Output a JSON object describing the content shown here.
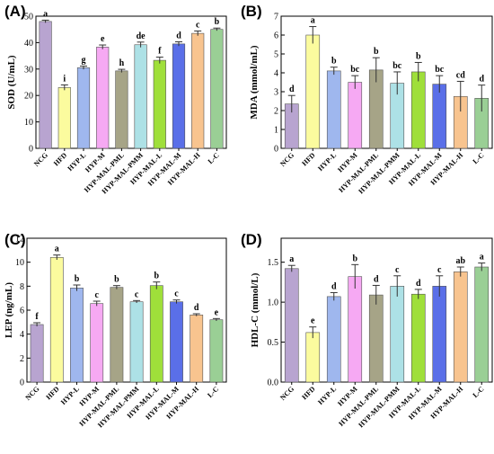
{
  "chart_data": [
    {
      "panel": "(A)",
      "type": "bar",
      "ylabel": "SOD (U/mL)",
      "ylim": [
        0,
        50
      ],
      "yticks": [
        0,
        10,
        20,
        30,
        40,
        50
      ],
      "categories": [
        "NCG",
        "HFD",
        "HYP-L",
        "HYP-M",
        "HYP-MAL-PML",
        "HYP-MAL-PMM",
        "HYP-MAL-L",
        "HYP-MAL-M",
        "HYP-MAL-H",
        "L-C"
      ],
      "values": [
        48,
        23,
        30.5,
        38.3,
        29.3,
        39.2,
        33.3,
        39.5,
        43.5,
        45
      ],
      "errors": [
        0.5,
        1.0,
        0.6,
        0.8,
        0.6,
        1.0,
        1.2,
        0.8,
        0.9,
        0.5
      ],
      "letters": [
        "a",
        "i",
        "g",
        "e",
        "h",
        "de",
        "f",
        "d",
        "c",
        "b"
      ]
    },
    {
      "panel": "(B)",
      "type": "bar",
      "ylabel": "MDA (mmol/mL)",
      "ylim": [
        0,
        7
      ],
      "yticks": [
        0,
        1,
        2,
        3,
        4,
        5,
        6,
        7
      ],
      "categories": [
        "NCG",
        "HFD",
        "HYP-L",
        "HYP-M",
        "HYP-MAL-PML",
        "HYP-MAL-PMM",
        "HYP-MAL-L",
        "HYP-MAL-M",
        "HYP-MAL-H",
        "L-C"
      ],
      "values": [
        2.35,
        6.0,
        4.1,
        3.5,
        4.15,
        3.45,
        4.05,
        3.4,
        2.75,
        2.65
      ],
      "errors": [
        0.45,
        0.45,
        0.2,
        0.35,
        0.65,
        0.6,
        0.5,
        0.45,
        0.8,
        0.7
      ],
      "letters": [
        "d",
        "a",
        "b",
        "bc",
        "b",
        "bc",
        "b",
        "bc",
        "cd",
        "d"
      ]
    },
    {
      "panel": "(C)",
      "type": "bar",
      "ylabel": "LEP (ng/mL)",
      "ylim": [
        0,
        12
      ],
      "yticks": [
        0,
        2,
        4,
        6,
        8,
        10,
        12
      ],
      "categories": [
        "NCG",
        "HFD",
        "HYP-L",
        "HYP-M",
        "HYP-MAL-PML",
        "HYP-MAL-PMM",
        "HYP-MAL-L",
        "HYP-MAL-M",
        "HYP-MAL-H",
        "L-C"
      ],
      "values": [
        4.8,
        10.4,
        7.85,
        6.55,
        7.9,
        6.7,
        8.05,
        6.7,
        5.6,
        5.2
      ],
      "errors": [
        0.15,
        0.2,
        0.25,
        0.2,
        0.15,
        0.1,
        0.3,
        0.15,
        0.1,
        0.1
      ],
      "letters": [
        "f",
        "a",
        "b",
        "c",
        "b",
        "c",
        "b",
        "c",
        "d",
        "e"
      ]
    },
    {
      "panel": "(D)",
      "type": "bar",
      "ylabel": "HDL-C (mmol/L)",
      "ylim": [
        0,
        1.8
      ],
      "yticks": [
        0,
        0.5,
        1.0,
        1.5
      ],
      "ytick_labels": [
        "0.0",
        "0.5",
        "1.0",
        "1.5"
      ],
      "categories": [
        "NCG",
        "HFD",
        "HYP-L",
        "HYP-M",
        "HYP-MAL-PML",
        "HYP-MAL-PMM",
        "HYP-MAL-L",
        "HYP-MAL-M",
        "HYP-MAL-H",
        "L-C"
      ],
      "values": [
        1.42,
        0.62,
        1.07,
        1.32,
        1.09,
        1.2,
        1.1,
        1.2,
        1.38,
        1.44
      ],
      "errors": [
        0.04,
        0.07,
        0.05,
        0.15,
        0.12,
        0.13,
        0.06,
        0.13,
        0.06,
        0.05
      ],
      "letters": [
        "a",
        "e",
        "d",
        "b",
        "d",
        "c",
        "d",
        "c",
        "ab",
        "a"
      ]
    }
  ],
  "colors": [
    "#b8a4d0",
    "#fbfb9e",
    "#9fb7ee",
    "#f6a9f3",
    "#a6a487",
    "#ade1e6",
    "#9fdf3a",
    "#5a6fe8",
    "#f8c48f",
    "#9acf95"
  ]
}
